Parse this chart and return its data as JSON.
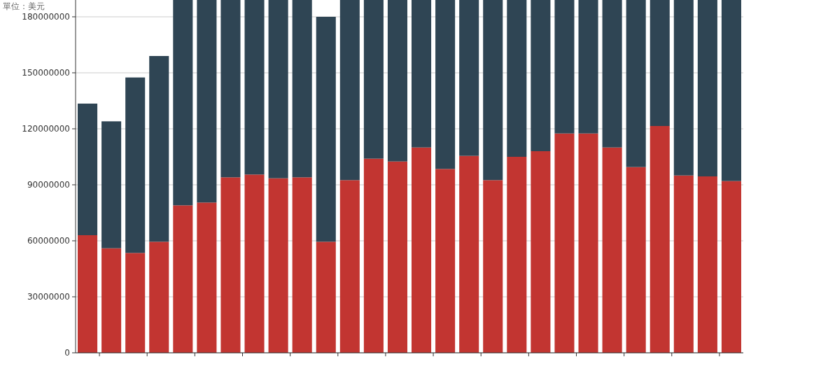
{
  "chart_data": {
    "type": "bar",
    "ylabel": "單位：美元",
    "stacked": true,
    "grid": "y",
    "tick_labels": "y",
    "categories": [
      null,
      null,
      null,
      null,
      null,
      null,
      null,
      null,
      null,
      null,
      null,
      null,
      null,
      null,
      null,
      null,
      null,
      null,
      null,
      null,
      null,
      null,
      null,
      null,
      null,
      null,
      null,
      null
    ],
    "ylim": [
      0,
      189000000
    ],
    "yticks": [
      0,
      30000000,
      60000000,
      90000000,
      120000000,
      150000000,
      180000000
    ],
    "series": [
      {
        "color": "#c23531",
        "values": [
          63000000,
          56000000,
          53500000,
          59500000,
          79000000,
          80500000,
          94000000,
          95500000,
          93500000,
          94000000,
          59500000,
          92500000,
          104000000,
          102500000,
          110000000,
          98500000,
          105500000,
          92500000,
          105000000,
          108000000,
          117500000,
          117500000,
          110000000,
          99500000,
          121500000,
          95000000,
          94500000,
          92000000
        ]
      },
      {
        "color": "#2f4554",
        "values": [
          70500000,
          68000000,
          94000000,
          99500000,
          110000000,
          108500000,
          95000000,
          93500000,
          95500000,
          95000000,
          120500000,
          96500000,
          85000000,
          86500000,
          79000000,
          90500000,
          83500000,
          96500000,
          84000000,
          81000000,
          71500000,
          71500000,
          79000000,
          89500000,
          67500000,
          94000000,
          94500000,
          97000000
        ]
      }
    ]
  }
}
